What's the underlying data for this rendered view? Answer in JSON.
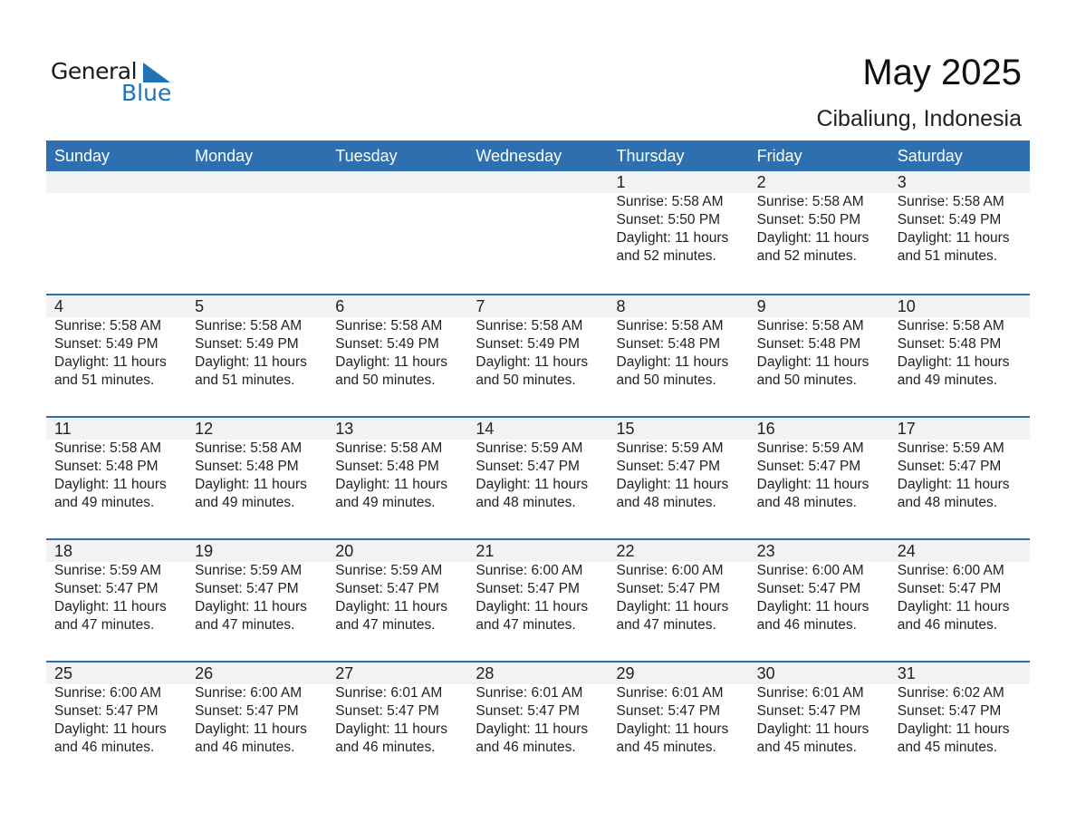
{
  "logo": {
    "general": "General",
    "blue": "Blue",
    "brand_color": "#1f73b7"
  },
  "title": "May 2025",
  "location": "Cibaliung, Indonesia",
  "header_color": "#2e6fb0",
  "days": [
    "Sunday",
    "Monday",
    "Tuesday",
    "Wednesday",
    "Thursday",
    "Friday",
    "Saturday"
  ],
  "weeks": [
    [
      null,
      null,
      null,
      null,
      {
        "day": "1",
        "sunrise": "Sunrise: 5:58 AM",
        "sunset": "Sunset: 5:50 PM",
        "daylight": "Daylight: 11 hours",
        "minutes": "and 52 minutes."
      },
      {
        "day": "2",
        "sunrise": "Sunrise: 5:58 AM",
        "sunset": "Sunset: 5:50 PM",
        "daylight": "Daylight: 11 hours",
        "minutes": "and 52 minutes."
      },
      {
        "day": "3",
        "sunrise": "Sunrise: 5:58 AM",
        "sunset": "Sunset: 5:49 PM",
        "daylight": "Daylight: 11 hours",
        "minutes": "and 51 minutes."
      }
    ],
    [
      {
        "day": "4",
        "sunrise": "Sunrise: 5:58 AM",
        "sunset": "Sunset: 5:49 PM",
        "daylight": "Daylight: 11 hours",
        "minutes": "and 51 minutes."
      },
      {
        "day": "5",
        "sunrise": "Sunrise: 5:58 AM",
        "sunset": "Sunset: 5:49 PM",
        "daylight": "Daylight: 11 hours",
        "minutes": "and 51 minutes."
      },
      {
        "day": "6",
        "sunrise": "Sunrise: 5:58 AM",
        "sunset": "Sunset: 5:49 PM",
        "daylight": "Daylight: 11 hours",
        "minutes": "and 50 minutes."
      },
      {
        "day": "7",
        "sunrise": "Sunrise: 5:58 AM",
        "sunset": "Sunset: 5:49 PM",
        "daylight": "Daylight: 11 hours",
        "minutes": "and 50 minutes."
      },
      {
        "day": "8",
        "sunrise": "Sunrise: 5:58 AM",
        "sunset": "Sunset: 5:48 PM",
        "daylight": "Daylight: 11 hours",
        "minutes": "and 50 minutes."
      },
      {
        "day": "9",
        "sunrise": "Sunrise: 5:58 AM",
        "sunset": "Sunset: 5:48 PM",
        "daylight": "Daylight: 11 hours",
        "minutes": "and 50 minutes."
      },
      {
        "day": "10",
        "sunrise": "Sunrise: 5:58 AM",
        "sunset": "Sunset: 5:48 PM",
        "daylight": "Daylight: 11 hours",
        "minutes": "and 49 minutes."
      }
    ],
    [
      {
        "day": "11",
        "sunrise": "Sunrise: 5:58 AM",
        "sunset": "Sunset: 5:48 PM",
        "daylight": "Daylight: 11 hours",
        "minutes": "and 49 minutes."
      },
      {
        "day": "12",
        "sunrise": "Sunrise: 5:58 AM",
        "sunset": "Sunset: 5:48 PM",
        "daylight": "Daylight: 11 hours",
        "minutes": "and 49 minutes."
      },
      {
        "day": "13",
        "sunrise": "Sunrise: 5:58 AM",
        "sunset": "Sunset: 5:48 PM",
        "daylight": "Daylight: 11 hours",
        "minutes": "and 49 minutes."
      },
      {
        "day": "14",
        "sunrise": "Sunrise: 5:59 AM",
        "sunset": "Sunset: 5:47 PM",
        "daylight": "Daylight: 11 hours",
        "minutes": "and 48 minutes."
      },
      {
        "day": "15",
        "sunrise": "Sunrise: 5:59 AM",
        "sunset": "Sunset: 5:47 PM",
        "daylight": "Daylight: 11 hours",
        "minutes": "and 48 minutes."
      },
      {
        "day": "16",
        "sunrise": "Sunrise: 5:59 AM",
        "sunset": "Sunset: 5:47 PM",
        "daylight": "Daylight: 11 hours",
        "minutes": "and 48 minutes."
      },
      {
        "day": "17",
        "sunrise": "Sunrise: 5:59 AM",
        "sunset": "Sunset: 5:47 PM",
        "daylight": "Daylight: 11 hours",
        "minutes": "and 48 minutes."
      }
    ],
    [
      {
        "day": "18",
        "sunrise": "Sunrise: 5:59 AM",
        "sunset": "Sunset: 5:47 PM",
        "daylight": "Daylight: 11 hours",
        "minutes": "and 47 minutes."
      },
      {
        "day": "19",
        "sunrise": "Sunrise: 5:59 AM",
        "sunset": "Sunset: 5:47 PM",
        "daylight": "Daylight: 11 hours",
        "minutes": "and 47 minutes."
      },
      {
        "day": "20",
        "sunrise": "Sunrise: 5:59 AM",
        "sunset": "Sunset: 5:47 PM",
        "daylight": "Daylight: 11 hours",
        "minutes": "and 47 minutes."
      },
      {
        "day": "21",
        "sunrise": "Sunrise: 6:00 AM",
        "sunset": "Sunset: 5:47 PM",
        "daylight": "Daylight: 11 hours",
        "minutes": "and 47 minutes."
      },
      {
        "day": "22",
        "sunrise": "Sunrise: 6:00 AM",
        "sunset": "Sunset: 5:47 PM",
        "daylight": "Daylight: 11 hours",
        "minutes": "and 47 minutes."
      },
      {
        "day": "23",
        "sunrise": "Sunrise: 6:00 AM",
        "sunset": "Sunset: 5:47 PM",
        "daylight": "Daylight: 11 hours",
        "minutes": "and 46 minutes."
      },
      {
        "day": "24",
        "sunrise": "Sunrise: 6:00 AM",
        "sunset": "Sunset: 5:47 PM",
        "daylight": "Daylight: 11 hours",
        "minutes": "and 46 minutes."
      }
    ],
    [
      {
        "day": "25",
        "sunrise": "Sunrise: 6:00 AM",
        "sunset": "Sunset: 5:47 PM",
        "daylight": "Daylight: 11 hours",
        "minutes": "and 46 minutes."
      },
      {
        "day": "26",
        "sunrise": "Sunrise: 6:00 AM",
        "sunset": "Sunset: 5:47 PM",
        "daylight": "Daylight: 11 hours",
        "minutes": "and 46 minutes."
      },
      {
        "day": "27",
        "sunrise": "Sunrise: 6:01 AM",
        "sunset": "Sunset: 5:47 PM",
        "daylight": "Daylight: 11 hours",
        "minutes": "and 46 minutes."
      },
      {
        "day": "28",
        "sunrise": "Sunrise: 6:01 AM",
        "sunset": "Sunset: 5:47 PM",
        "daylight": "Daylight: 11 hours",
        "minutes": "and 46 minutes."
      },
      {
        "day": "29",
        "sunrise": "Sunrise: 6:01 AM",
        "sunset": "Sunset: 5:47 PM",
        "daylight": "Daylight: 11 hours",
        "minutes": "and 45 minutes."
      },
      {
        "day": "30",
        "sunrise": "Sunrise: 6:01 AM",
        "sunset": "Sunset: 5:47 PM",
        "daylight": "Daylight: 11 hours",
        "minutes": "and 45 minutes."
      },
      {
        "day": "31",
        "sunrise": "Sunrise: 6:02 AM",
        "sunset": "Sunset: 5:47 PM",
        "daylight": "Daylight: 11 hours",
        "minutes": "and 45 minutes."
      }
    ]
  ]
}
